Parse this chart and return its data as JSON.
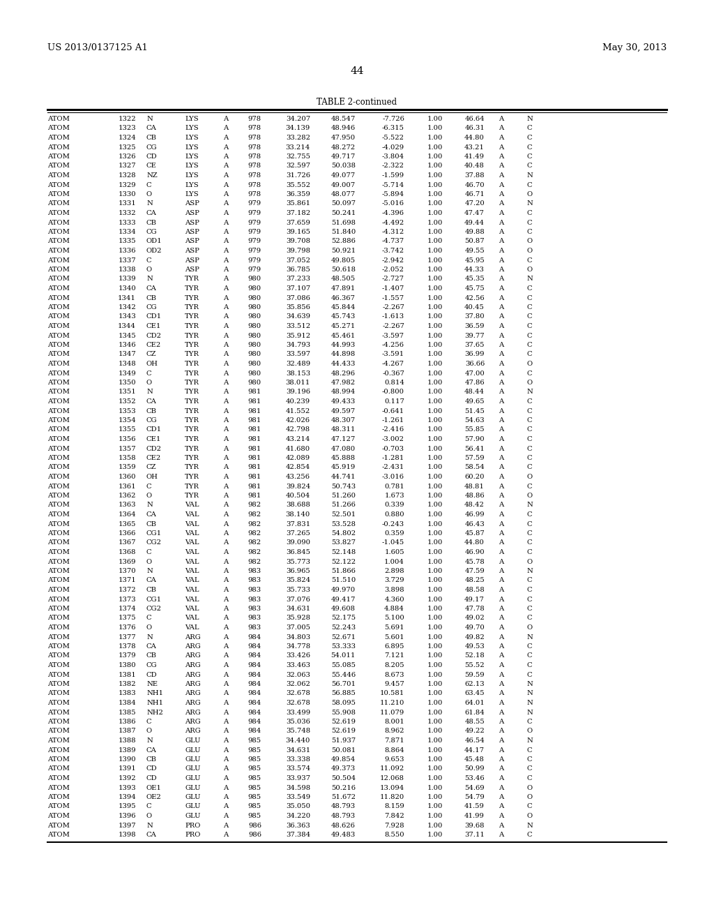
{
  "header_left": "US 2013/0137125 A1",
  "header_right": "May 30, 2013",
  "page_number": "44",
  "table_title": "TABLE 2-continued",
  "rows": [
    [
      "ATOM",
      "1322",
      "N",
      "LYS",
      "A",
      "978",
      "34.207",
      "48.547",
      "-7.726",
      "1.00",
      "46.64",
      "A",
      "N"
    ],
    [
      "ATOM",
      "1323",
      "CA",
      "LYS",
      "A",
      "978",
      "34.139",
      "48.946",
      "-6.315",
      "1.00",
      "46.31",
      "A",
      "C"
    ],
    [
      "ATOM",
      "1324",
      "CB",
      "LYS",
      "A",
      "978",
      "33.282",
      "47.950",
      "-5.522",
      "1.00",
      "44.80",
      "A",
      "C"
    ],
    [
      "ATOM",
      "1325",
      "CG",
      "LYS",
      "A",
      "978",
      "33.214",
      "48.272",
      "-4.029",
      "1.00",
      "43.21",
      "A",
      "C"
    ],
    [
      "ATOM",
      "1326",
      "CD",
      "LYS",
      "A",
      "978",
      "32.755",
      "49.717",
      "-3.804",
      "1.00",
      "41.49",
      "A",
      "C"
    ],
    [
      "ATOM",
      "1327",
      "CE",
      "LYS",
      "A",
      "978",
      "32.597",
      "50.038",
      "-2.322",
      "1.00",
      "40.48",
      "A",
      "C"
    ],
    [
      "ATOM",
      "1328",
      "NZ",
      "LYS",
      "A",
      "978",
      "31.726",
      "49.077",
      "-1.599",
      "1.00",
      "37.88",
      "A",
      "N"
    ],
    [
      "ATOM",
      "1329",
      "C",
      "LYS",
      "A",
      "978",
      "35.552",
      "49.007",
      "-5.714",
      "1.00",
      "46.70",
      "A",
      "C"
    ],
    [
      "ATOM",
      "1330",
      "O",
      "LYS",
      "A",
      "978",
      "36.359",
      "48.077",
      "-5.894",
      "1.00",
      "46.71",
      "A",
      "O"
    ],
    [
      "ATOM",
      "1331",
      "N",
      "ASP",
      "A",
      "979",
      "35.861",
      "50.097",
      "-5.016",
      "1.00",
      "47.20",
      "A",
      "N"
    ],
    [
      "ATOM",
      "1332",
      "CA",
      "ASP",
      "A",
      "979",
      "37.182",
      "50.241",
      "-4.396",
      "1.00",
      "47.47",
      "A",
      "C"
    ],
    [
      "ATOM",
      "1333",
      "CB",
      "ASP",
      "A",
      "979",
      "37.659",
      "51.698",
      "-4.492",
      "1.00",
      "49.44",
      "A",
      "C"
    ],
    [
      "ATOM",
      "1334",
      "CG",
      "ASP",
      "A",
      "979",
      "39.165",
      "51.840",
      "-4.312",
      "1.00",
      "49.88",
      "A",
      "C"
    ],
    [
      "ATOM",
      "1335",
      "OD1",
      "ASP",
      "A",
      "979",
      "39.708",
      "52.886",
      "-4.737",
      "1.00",
      "50.87",
      "A",
      "O"
    ],
    [
      "ATOM",
      "1336",
      "OD2",
      "ASP",
      "A",
      "979",
      "39.798",
      "50.921",
      "-3.742",
      "1.00",
      "49.55",
      "A",
      "O"
    ],
    [
      "ATOM",
      "1337",
      "C",
      "ASP",
      "A",
      "979",
      "37.052",
      "49.805",
      "-2.942",
      "1.00",
      "45.95",
      "A",
      "C"
    ],
    [
      "ATOM",
      "1338",
      "O",
      "ASP",
      "A",
      "979",
      "36.785",
      "50.618",
      "-2.052",
      "1.00",
      "44.33",
      "A",
      "O"
    ],
    [
      "ATOM",
      "1339",
      "N",
      "TYR",
      "A",
      "980",
      "37.233",
      "48.505",
      "-2.727",
      "1.00",
      "45.35",
      "A",
      "N"
    ],
    [
      "ATOM",
      "1340",
      "CA",
      "TYR",
      "A",
      "980",
      "37.107",
      "47.891",
      "-1.407",
      "1.00",
      "45.75",
      "A",
      "C"
    ],
    [
      "ATOM",
      "1341",
      "CB",
      "TYR",
      "A",
      "980",
      "37.086",
      "46.367",
      "-1.557",
      "1.00",
      "42.56",
      "A",
      "C"
    ],
    [
      "ATOM",
      "1342",
      "CG",
      "TYR",
      "A",
      "980",
      "35.856",
      "45.844",
      "-2.267",
      "1.00",
      "40.45",
      "A",
      "C"
    ],
    [
      "ATOM",
      "1343",
      "CD1",
      "TYR",
      "A",
      "980",
      "34.639",
      "45.743",
      "-1.613",
      "1.00",
      "37.80",
      "A",
      "C"
    ],
    [
      "ATOM",
      "1344",
      "CE1",
      "TYR",
      "A",
      "980",
      "33.512",
      "45.271",
      "-2.267",
      "1.00",
      "36.59",
      "A",
      "C"
    ],
    [
      "ATOM",
      "1345",
      "CD2",
      "TYR",
      "A",
      "980",
      "35.912",
      "45.461",
      "-3.597",
      "1.00",
      "39.77",
      "A",
      "C"
    ],
    [
      "ATOM",
      "1346",
      "CE2",
      "TYR",
      "A",
      "980",
      "34.793",
      "44.993",
      "-4.256",
      "1.00",
      "37.65",
      "A",
      "C"
    ],
    [
      "ATOM",
      "1347",
      "CZ",
      "TYR",
      "A",
      "980",
      "33.597",
      "44.898",
      "-3.591",
      "1.00",
      "36.99",
      "A",
      "C"
    ],
    [
      "ATOM",
      "1348",
      "OH",
      "TYR",
      "A",
      "980",
      "32.489",
      "44.433",
      "-4.267",
      "1.00",
      "36.66",
      "A",
      "O"
    ],
    [
      "ATOM",
      "1349",
      "C",
      "TYR",
      "A",
      "980",
      "38.153",
      "48.296",
      "-0.367",
      "1.00",
      "47.00",
      "A",
      "C"
    ],
    [
      "ATOM",
      "1350",
      "O",
      "TYR",
      "A",
      "980",
      "38.011",
      "47.982",
      "0.814",
      "1.00",
      "47.86",
      "A",
      "O"
    ],
    [
      "ATOM",
      "1351",
      "N",
      "TYR",
      "A",
      "981",
      "39.196",
      "48.994",
      "-0.800",
      "1.00",
      "48.44",
      "A",
      "N"
    ],
    [
      "ATOM",
      "1352",
      "CA",
      "TYR",
      "A",
      "981",
      "40.239",
      "49.433",
      "0.117",
      "1.00",
      "49.65",
      "A",
      "C"
    ],
    [
      "ATOM",
      "1353",
      "CB",
      "TYR",
      "A",
      "981",
      "41.552",
      "49.597",
      "-0.641",
      "1.00",
      "51.45",
      "A",
      "C"
    ],
    [
      "ATOM",
      "1354",
      "CG",
      "TYR",
      "A",
      "981",
      "42.026",
      "48.307",
      "-1.261",
      "1.00",
      "54.63",
      "A",
      "C"
    ],
    [
      "ATOM",
      "1355",
      "CD1",
      "TYR",
      "A",
      "981",
      "42.798",
      "48.311",
      "-2.416",
      "1.00",
      "55.85",
      "A",
      "C"
    ],
    [
      "ATOM",
      "1356",
      "CE1",
      "TYR",
      "A",
      "981",
      "43.214",
      "47.127",
      "-3.002",
      "1.00",
      "57.90",
      "A",
      "C"
    ],
    [
      "ATOM",
      "1357",
      "CD2",
      "TYR",
      "A",
      "981",
      "41.680",
      "47.080",
      "-0.703",
      "1.00",
      "56.41",
      "A",
      "C"
    ],
    [
      "ATOM",
      "1358",
      "CE2",
      "TYR",
      "A",
      "981",
      "42.089",
      "45.888",
      "-1.281",
      "1.00",
      "57.59",
      "A",
      "C"
    ],
    [
      "ATOM",
      "1359",
      "CZ",
      "TYR",
      "A",
      "981",
      "42.854",
      "45.919",
      "-2.431",
      "1.00",
      "58.54",
      "A",
      "C"
    ],
    [
      "ATOM",
      "1360",
      "OH",
      "TYR",
      "A",
      "981",
      "43.256",
      "44.741",
      "-3.016",
      "1.00",
      "60.20",
      "A",
      "O"
    ],
    [
      "ATOM",
      "1361",
      "C",
      "TYR",
      "A",
      "981",
      "39.824",
      "50.743",
      "0.781",
      "1.00",
      "48.81",
      "A",
      "C"
    ],
    [
      "ATOM",
      "1362",
      "O",
      "TYR",
      "A",
      "981",
      "40.504",
      "51.260",
      "1.673",
      "1.00",
      "48.86",
      "A",
      "O"
    ],
    [
      "ATOM",
      "1363",
      "N",
      "VAL",
      "A",
      "982",
      "38.688",
      "51.266",
      "0.339",
      "1.00",
      "48.42",
      "A",
      "N"
    ],
    [
      "ATOM",
      "1364",
      "CA",
      "VAL",
      "A",
      "982",
      "38.140",
      "52.501",
      "0.880",
      "1.00",
      "46.99",
      "A",
      "C"
    ],
    [
      "ATOM",
      "1365",
      "CB",
      "VAL",
      "A",
      "982",
      "37.831",
      "53.528",
      "-0.243",
      "1.00",
      "46.43",
      "A",
      "C"
    ],
    [
      "ATOM",
      "1366",
      "CG1",
      "VAL",
      "A",
      "982",
      "37.265",
      "54.802",
      "0.359",
      "1.00",
      "45.87",
      "A",
      "C"
    ],
    [
      "ATOM",
      "1367",
      "CG2",
      "VAL",
      "A",
      "982",
      "39.090",
      "53.827",
      "-1.045",
      "1.00",
      "44.80",
      "A",
      "C"
    ],
    [
      "ATOM",
      "1368",
      "C",
      "VAL",
      "A",
      "982",
      "36.845",
      "52.148",
      "1.605",
      "1.00",
      "46.90",
      "A",
      "C"
    ],
    [
      "ATOM",
      "1369",
      "O",
      "VAL",
      "A",
      "982",
      "35.773",
      "52.122",
      "1.004",
      "1.00",
      "45.78",
      "A",
      "O"
    ],
    [
      "ATOM",
      "1370",
      "N",
      "VAL",
      "A",
      "983",
      "36.965",
      "51.866",
      "2.898",
      "1.00",
      "47.59",
      "A",
      "N"
    ],
    [
      "ATOM",
      "1371",
      "CA",
      "VAL",
      "A",
      "983",
      "35.824",
      "51.510",
      "3.729",
      "1.00",
      "48.25",
      "A",
      "C"
    ],
    [
      "ATOM",
      "1372",
      "CB",
      "VAL",
      "A",
      "983",
      "35.733",
      "49.970",
      "3.898",
      "1.00",
      "48.58",
      "A",
      "C"
    ],
    [
      "ATOM",
      "1373",
      "CG1",
      "VAL",
      "A",
      "983",
      "37.076",
      "49.417",
      "4.360",
      "1.00",
      "49.17",
      "A",
      "C"
    ],
    [
      "ATOM",
      "1374",
      "CG2",
      "VAL",
      "A",
      "983",
      "34.631",
      "49.608",
      "4.884",
      "1.00",
      "47.78",
      "A",
      "C"
    ],
    [
      "ATOM",
      "1375",
      "C",
      "VAL",
      "A",
      "983",
      "35.928",
      "52.175",
      "5.100",
      "1.00",
      "49.02",
      "A",
      "C"
    ],
    [
      "ATOM",
      "1376",
      "O",
      "VAL",
      "A",
      "983",
      "37.005",
      "52.243",
      "5.691",
      "1.00",
      "49.70",
      "A",
      "O"
    ],
    [
      "ATOM",
      "1377",
      "N",
      "ARG",
      "A",
      "984",
      "34.803",
      "52.671",
      "5.601",
      "1.00",
      "49.82",
      "A",
      "N"
    ],
    [
      "ATOM",
      "1378",
      "CA",
      "ARG",
      "A",
      "984",
      "34.778",
      "53.333",
      "6.895",
      "1.00",
      "49.53",
      "A",
      "C"
    ],
    [
      "ATOM",
      "1379",
      "CB",
      "ARG",
      "A",
      "984",
      "33.426",
      "54.011",
      "7.121",
      "1.00",
      "52.18",
      "A",
      "C"
    ],
    [
      "ATOM",
      "1380",
      "CG",
      "ARG",
      "A",
      "984",
      "33.463",
      "55.085",
      "8.205",
      "1.00",
      "55.52",
      "A",
      "C"
    ],
    [
      "ATOM",
      "1381",
      "CD",
      "ARG",
      "A",
      "984",
      "32.063",
      "55.446",
      "8.673",
      "1.00",
      "59.59",
      "A",
      "C"
    ],
    [
      "ATOM",
      "1382",
      "NE",
      "ARG",
      "A",
      "984",
      "32.062",
      "56.701",
      "9.457",
      "1.00",
      "62.13",
      "A",
      "N"
    ],
    [
      "ATOM",
      "1383",
      "NH1",
      "ARG",
      "A",
      "984",
      "32.678",
      "56.885",
      "10.581",
      "1.00",
      "63.45",
      "A",
      "N"
    ],
    [
      "ATOM",
      "1384",
      "NH1",
      "ARG",
      "A",
      "984",
      "32.678",
      "58.095",
      "11.210",
      "1.00",
      "64.01",
      "A",
      "N"
    ],
    [
      "ATOM",
      "1385",
      "NH2",
      "ARG",
      "A",
      "984",
      "33.499",
      "55.908",
      "11.079",
      "1.00",
      "61.84",
      "A",
      "N"
    ],
    [
      "ATOM",
      "1386",
      "C",
      "ARG",
      "A",
      "984",
      "35.036",
      "52.619",
      "8.001",
      "1.00",
      "48.55",
      "A",
      "C"
    ],
    [
      "ATOM",
      "1387",
      "O",
      "ARG",
      "A",
      "984",
      "35.748",
      "52.619",
      "8.962",
      "1.00",
      "49.22",
      "A",
      "O"
    ],
    [
      "ATOM",
      "1388",
      "N",
      "GLU",
      "A",
      "985",
      "34.440",
      "51.937",
      "7.871",
      "1.00",
      "46.54",
      "A",
      "N"
    ],
    [
      "ATOM",
      "1389",
      "CA",
      "GLU",
      "A",
      "985",
      "34.631",
      "50.081",
      "8.864",
      "1.00",
      "44.17",
      "A",
      "C"
    ],
    [
      "ATOM",
      "1390",
      "CB",
      "GLU",
      "A",
      "985",
      "33.338",
      "49.854",
      "9.653",
      "1.00",
      "45.48",
      "A",
      "C"
    ],
    [
      "ATOM",
      "1391",
      "CD",
      "GLU",
      "A",
      "985",
      "33.574",
      "49.373",
      "11.092",
      "1.00",
      "50.99",
      "A",
      "C"
    ],
    [
      "ATOM",
      "1392",
      "CD",
      "GLU",
      "A",
      "985",
      "33.937",
      "50.504",
      "12.068",
      "1.00",
      "53.46",
      "A",
      "C"
    ],
    [
      "ATOM",
      "1393",
      "OE1",
      "GLU",
      "A",
      "985",
      "34.598",
      "50.216",
      "13.094",
      "1.00",
      "54.69",
      "A",
      "O"
    ],
    [
      "ATOM",
      "1394",
      "OE2",
      "GLU",
      "A",
      "985",
      "33.549",
      "51.672",
      "11.820",
      "1.00",
      "54.79",
      "A",
      "O"
    ],
    [
      "ATOM",
      "1395",
      "C",
      "GLU",
      "A",
      "985",
      "35.050",
      "48.793",
      "8.159",
      "1.00",
      "41.59",
      "A",
      "C"
    ],
    [
      "ATOM",
      "1396",
      "O",
      "GLU",
      "A",
      "985",
      "34.220",
      "48.793",
      "7.842",
      "1.00",
      "41.99",
      "A",
      "O"
    ],
    [
      "ATOM",
      "1397",
      "N",
      "PRO",
      "A",
      "986",
      "36.363",
      "48.626",
      "7.928",
      "1.00",
      "39.68",
      "A",
      "N"
    ],
    [
      "ATOM",
      "1398",
      "CA",
      "PRO",
      "A",
      "986",
      "37.384",
      "49.483",
      "8.550",
      "1.00",
      "37.11",
      "A",
      "C"
    ]
  ],
  "background_color": "#ffffff",
  "font_size": 7.2,
  "title_font_size": 8.5,
  "header_font_size": 9.5
}
